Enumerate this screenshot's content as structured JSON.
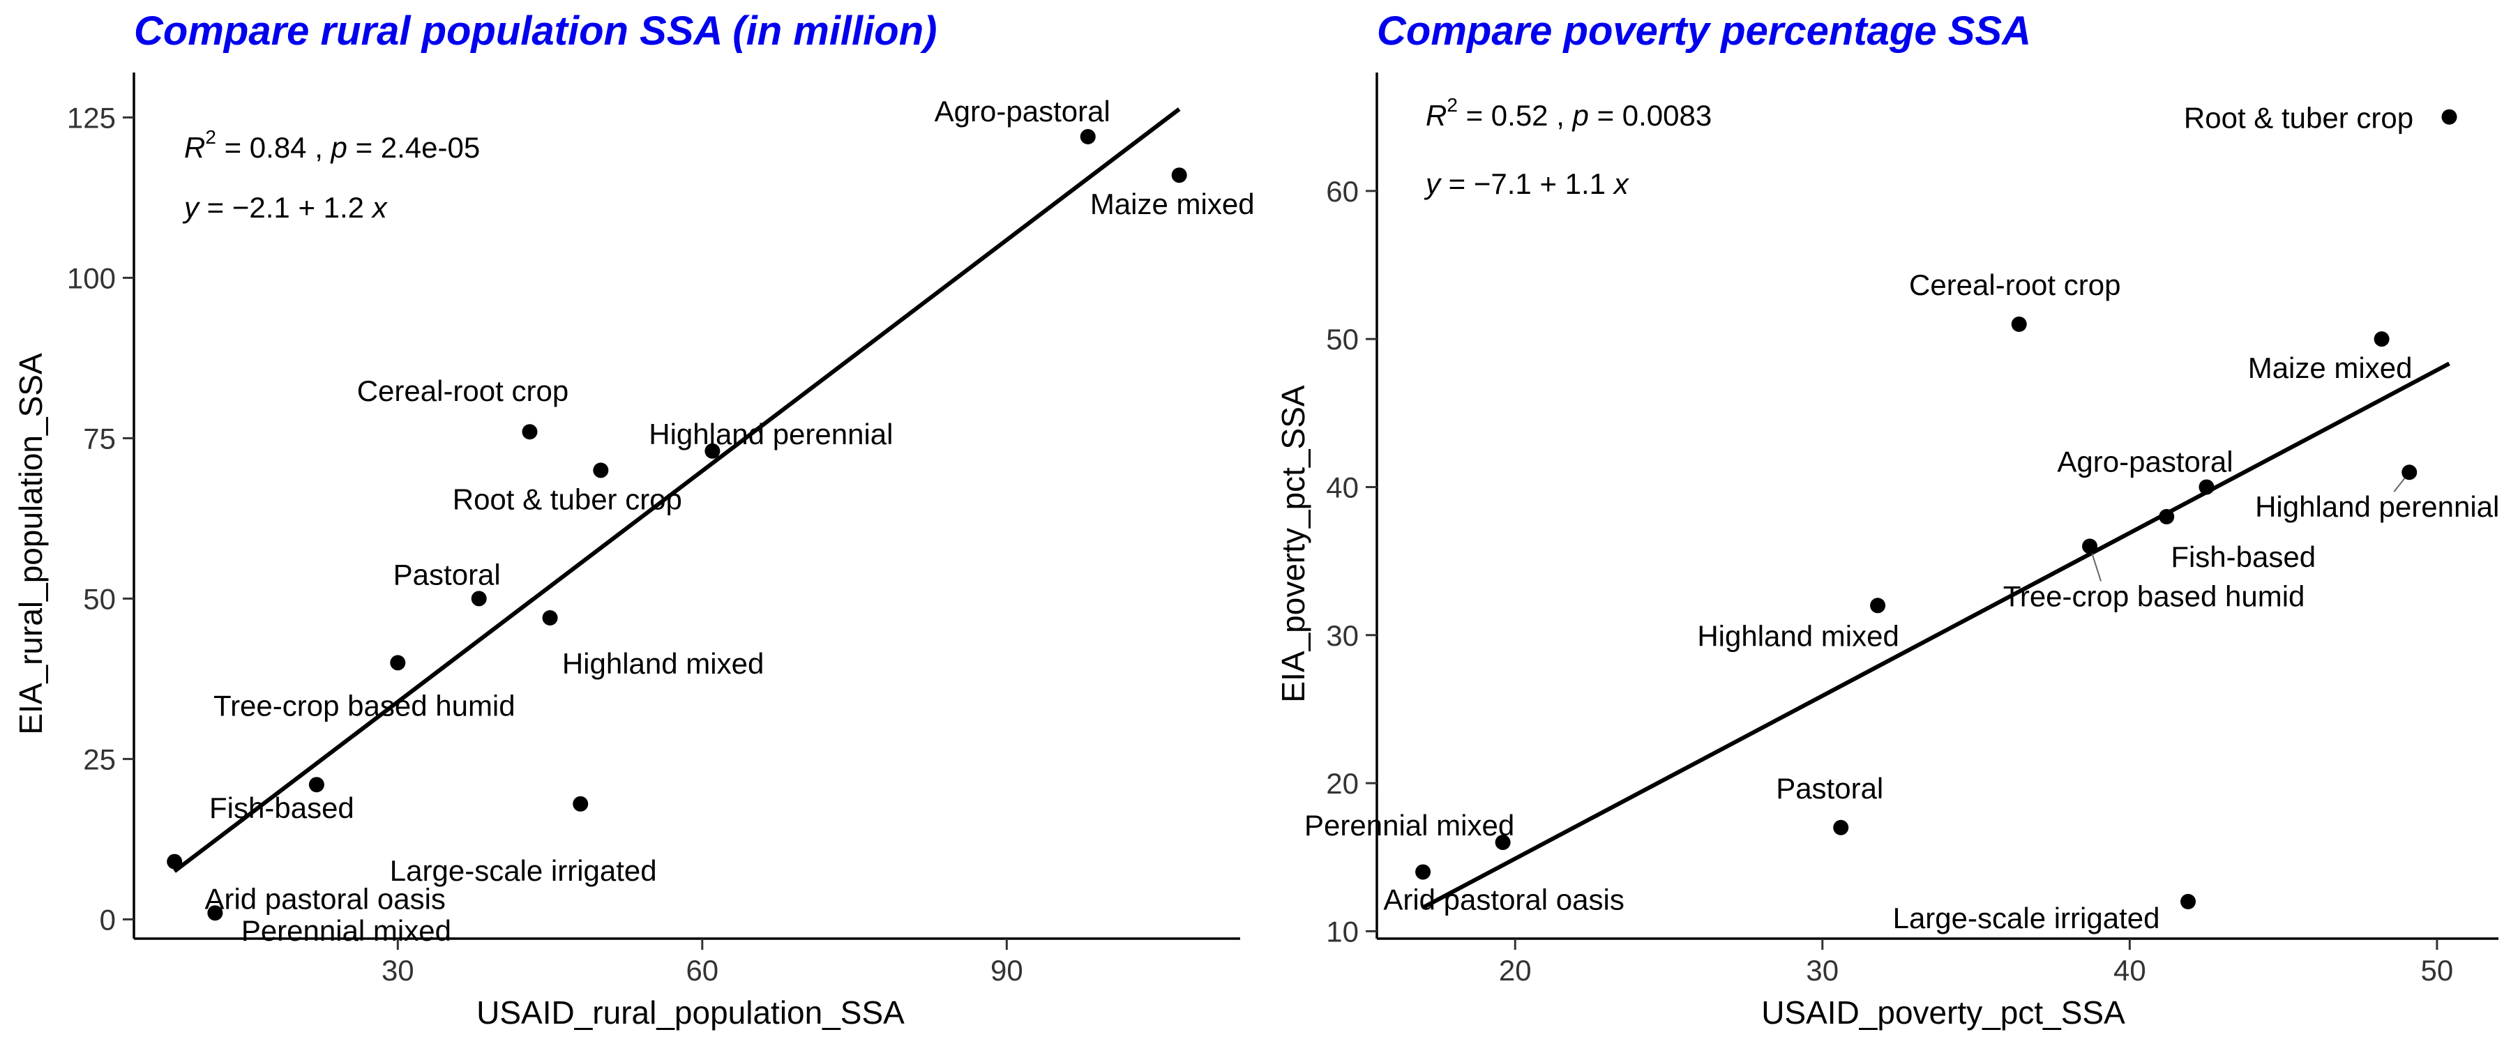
{
  "chart_data": [
    {
      "type": "scatter",
      "title": "Compare rural population SSA (in million)",
      "xlabel": "USAID_rural_population_SSA",
      "ylabel": "EIA_rural_population_SSA",
      "xlim": [
        4,
        113
      ],
      "ylim": [
        -3,
        132
      ],
      "x_ticks": [
        30,
        60,
        90
      ],
      "y_ticks": [
        0,
        25,
        50,
        75,
        100,
        125
      ],
      "stats": {
        "r2_symbol": "R",
        "r2_exp": "2",
        "r2_value": " = 0.84 , ",
        "p_symbol": "p",
        "p_value": " = 2.4e-05",
        "eq_y": "y",
        "eq_mid": " = −2.1 + 1.2 ",
        "eq_x": "x"
      },
      "regression": {
        "intercept": -2.1,
        "slope": 1.2,
        "x_range": [
          8,
          107
        ]
      },
      "points": [
        {
          "label": "Agro-pastoral",
          "x": 98,
          "y": 122
        },
        {
          "label": "Maize mixed",
          "x": 107,
          "y": 116
        },
        {
          "label": "Cereal-root crop",
          "x": 43,
          "y": 76
        },
        {
          "label": "Highland perennial",
          "x": 61,
          "y": 73
        },
        {
          "label": "Root & tuber crop",
          "x": 50,
          "y": 70
        },
        {
          "label": "Pastoral",
          "x": 38,
          "y": 50
        },
        {
          "label": "Highland mixed",
          "x": 45,
          "y": 47
        },
        {
          "label": "Tree-crop based humid",
          "x": 30,
          "y": 40
        },
        {
          "label": "Fish-based",
          "x": 22,
          "y": 21
        },
        {
          "label": "Large-scale irrigated",
          "x": 48,
          "y": 18
        },
        {
          "label": "Arid pastoral oasis",
          "x": 8,
          "y": 9
        },
        {
          "label": "Perennial mixed",
          "x": 12,
          "y": 1
        }
      ]
    },
    {
      "type": "scatter",
      "title": "Compare poverty percentage SSA",
      "xlabel": "USAID_poverty_pct_SSA",
      "ylabel": "EIA_poverty_pct_SSA",
      "xlim": [
        15.5,
        52
      ],
      "ylim": [
        9.5,
        68
      ],
      "x_ticks": [
        20,
        30,
        40,
        50
      ],
      "y_ticks": [
        10,
        20,
        30,
        40,
        50,
        60
      ],
      "stats": {
        "r2_symbol": "R",
        "r2_exp": "2",
        "r2_value": " = 0.52 , ",
        "p_symbol": "p",
        "p_value": " = 0.0083",
        "eq_y": "y",
        "eq_mid": " = −7.1 + 1.1 ",
        "eq_x": "x"
      },
      "regression": {
        "intercept": -7.1,
        "slope": 1.1,
        "x_range": [
          17,
          50.4
        ]
      },
      "points": [
        {
          "label": "Root & tuber crop",
          "x": 50.4,
          "y": 65
        },
        {
          "label": "Cereal-root crop",
          "x": 36.4,
          "y": 51
        },
        {
          "label": "Maize mixed",
          "x": 48.2,
          "y": 50
        },
        {
          "label": "Agro-pastoral",
          "x": 42.5,
          "y": 40
        },
        {
          "label": "Highland perennial",
          "x": 49.1,
          "y": 41
        },
        {
          "label": "Fish-based",
          "x": 41.2,
          "y": 38
        },
        {
          "label": "Tree-crop based humid",
          "x": 38.7,
          "y": 36
        },
        {
          "label": "Highland mixed",
          "x": 31.8,
          "y": 32
        },
        {
          "label": "Pastoral",
          "x": 30.6,
          "y": 17
        },
        {
          "label": "Perennial mixed",
          "x": 19.6,
          "y": 16
        },
        {
          "label": "Arid pastoral oasis",
          "x": 17,
          "y": 14
        },
        {
          "label": "Large-scale irrigated",
          "x": 41.9,
          "y": 12
        }
      ]
    }
  ]
}
